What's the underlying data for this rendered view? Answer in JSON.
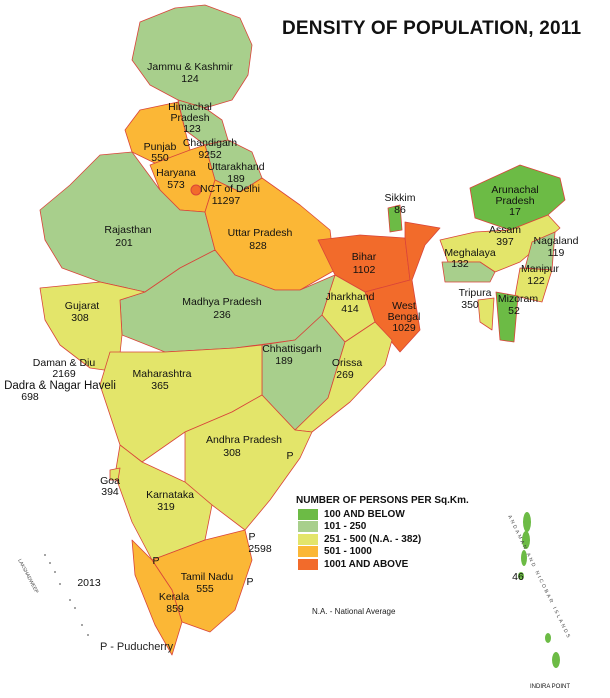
{
  "title": "DENSITY OF POPULATION, 2011",
  "colors": {
    "c1": "#6cbb45",
    "c2": "#a8cf8c",
    "c3": "#e3e56a",
    "c4": "#fbb736",
    "c5": "#f26b2b",
    "border": "#d9443a",
    "sea": "#5fc7d8"
  },
  "legend": {
    "heading": "NUMBER OF PERSONS PER Sq.Km.",
    "items": [
      {
        "label": "100 AND BELOW",
        "color": "#6cbb45"
      },
      {
        "label": "101 - 250",
        "color": "#a8cf8c"
      },
      {
        "label": "251 - 500 (N.A. - 382)",
        "color": "#e3e56a"
      },
      {
        "label": "501 - 1000",
        "color": "#fbb736"
      },
      {
        "label": "1001 AND ABOVE",
        "color": "#f26b2b"
      }
    ]
  },
  "states": [
    {
      "name": "Jammu & Kashmir",
      "value": "124"
    },
    {
      "name": "Himachal Pradesh",
      "value": "123"
    },
    {
      "name": "Punjab",
      "value": "550"
    },
    {
      "name": "Chandigarh",
      "value": "9252"
    },
    {
      "name": "Uttarakhand",
      "value": "189"
    },
    {
      "name": "Haryana",
      "value": "573"
    },
    {
      "name": "NCT of Delhi",
      "value": "11297"
    },
    {
      "name": "Rajasthan",
      "value": "201"
    },
    {
      "name": "Uttar Pradesh",
      "value": "828"
    },
    {
      "name": "Bihar",
      "value": "1102"
    },
    {
      "name": "Sikkim",
      "value": "86"
    },
    {
      "name": "Arunachal Pradesh",
      "value": "17"
    },
    {
      "name": "Assam",
      "value": "397"
    },
    {
      "name": "Nagaland",
      "value": "119"
    },
    {
      "name": "Meghalaya",
      "value": "132"
    },
    {
      "name": "Manipur",
      "value": "122"
    },
    {
      "name": "Tripura",
      "value": "350"
    },
    {
      "name": "Mizoram",
      "value": "52"
    },
    {
      "name": "Gujarat",
      "value": "308"
    },
    {
      "name": "Madhya Pradesh",
      "value": "236"
    },
    {
      "name": "Jharkhand",
      "value": "414"
    },
    {
      "name": "West Bengal",
      "value": "1029"
    },
    {
      "name": "Chhattisgarh",
      "value": "189"
    },
    {
      "name": "Daman & Diu",
      "value": "2169"
    },
    {
      "name": "Dadra & Nagar Haveli",
      "value": "698"
    },
    {
      "name": "Orissa",
      "value": "269"
    },
    {
      "name": "Maharashtra",
      "value": "365"
    },
    {
      "name": "Andhra Pradesh",
      "value": "308"
    },
    {
      "name": "Goa",
      "value": "394"
    },
    {
      "name": "Karnataka",
      "value": "319"
    },
    {
      "name": "Tamil Nadu",
      "value": "555"
    },
    {
      "name": "Kerala",
      "value": "859"
    },
    {
      "name": "Lakshadweep",
      "value": "2013"
    },
    {
      "name": "Andaman and Nicobar Islands",
      "value": "46"
    },
    {
      "name": "Puducherry",
      "value": "2598"
    }
  ],
  "labels": {
    "lakshadweep_caption": "LAKSHADWEEP",
    "andaman_caption": "ANDAMAN AND NICOBAR ISLANDS",
    "indira_point": "INDIRA POINT",
    "puducherry_marker": "P",
    "puducherry_key": "P - Puducherry",
    "na_key": "N.A. - National Average",
    "himachal_l1": "Himachal",
    "himachal_l2": "Pradesh",
    "arunachal_l1": "Arunachal",
    "arunachal_l2": "Pradesh",
    "wb_l1": "West",
    "wb_l2": "Bengal"
  }
}
